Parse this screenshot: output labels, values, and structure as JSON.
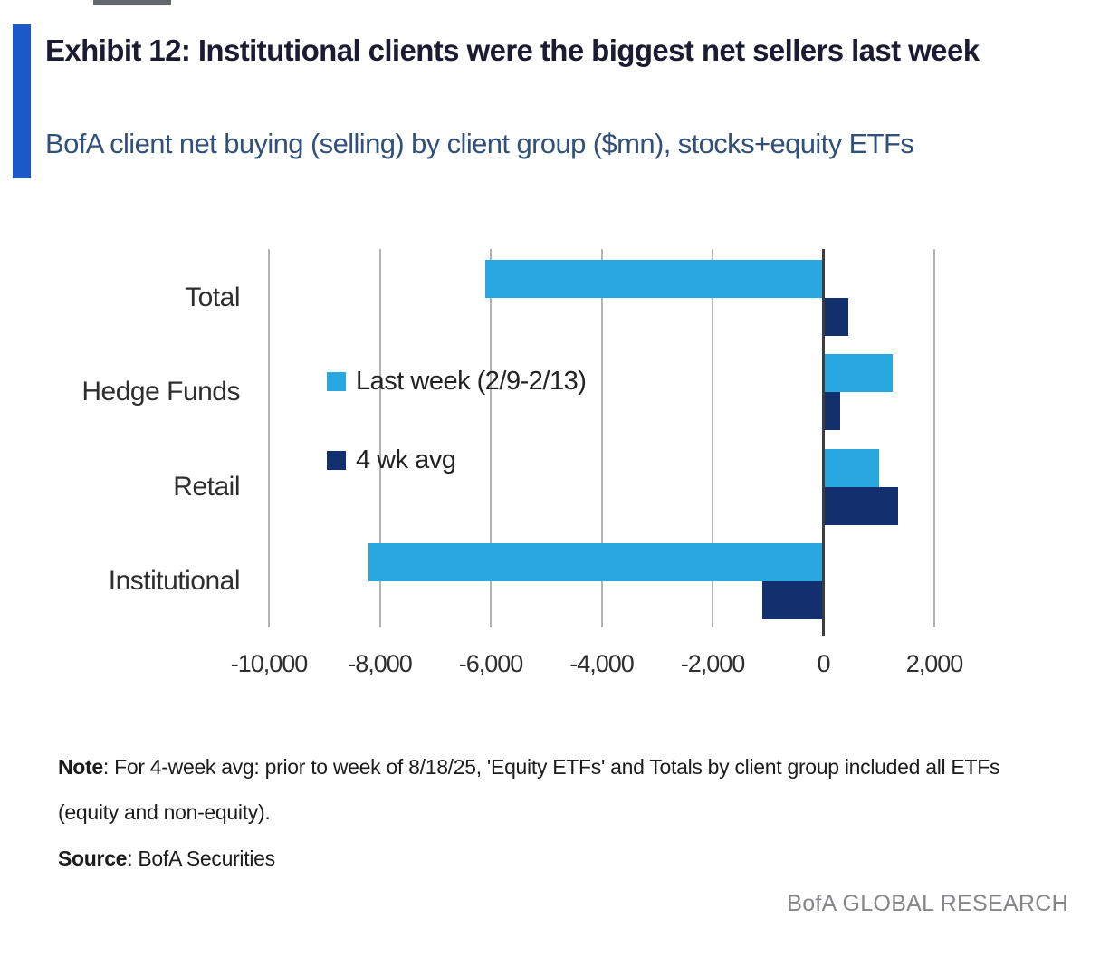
{
  "accent_color": "#1b59c8",
  "header": {
    "exhibit_title": "Exhibit 12: Institutional clients were the biggest net sellers last week",
    "subtitle": "BofA client net buying (selling) by client group ($mn), stocks+equity ETFs"
  },
  "chart_data": {
    "type": "bar",
    "orientation": "horizontal",
    "title": "BofA client net buying (selling) by client group ($mn), stocks+equity ETFs",
    "xlabel": "",
    "ylabel": "",
    "categories": [
      "Total",
      "Hedge Funds",
      "Retail",
      "Institutional"
    ],
    "series": [
      {
        "name": "Last week (2/9-2/13)",
        "color": "#29a7e0",
        "values": [
          -6100,
          1250,
          1000,
          -8200
        ]
      },
      {
        "name": "4 wk avg",
        "color": "#12306e",
        "values": [
          450,
          300,
          1350,
          -1100
        ]
      }
    ],
    "axis": {
      "min": -10000,
      "max": 2000,
      "tick_step": 2000,
      "tick_labels": [
        "-10,000",
        "-8,000",
        "-6,000",
        "-4,000",
        "-2,000",
        "0",
        "2,000"
      ]
    },
    "grid": true,
    "legend_position": "inside-left"
  },
  "footer": {
    "note_label": "Note",
    "note_text": ": For 4-week avg: prior to week of 8/18/25, 'Equity ETFs' and Totals by client group included all ETFs (equity and non-equity).",
    "source_label": "Source",
    "source_text": ": BofA Securities",
    "brand": "BofA GLOBAL RESEARCH"
  },
  "colors": {
    "light_blue": "#29a7e0",
    "dark_navy": "#12306e",
    "gridline": "#b3b3b3",
    "zero_line": "#3d3d3d"
  }
}
